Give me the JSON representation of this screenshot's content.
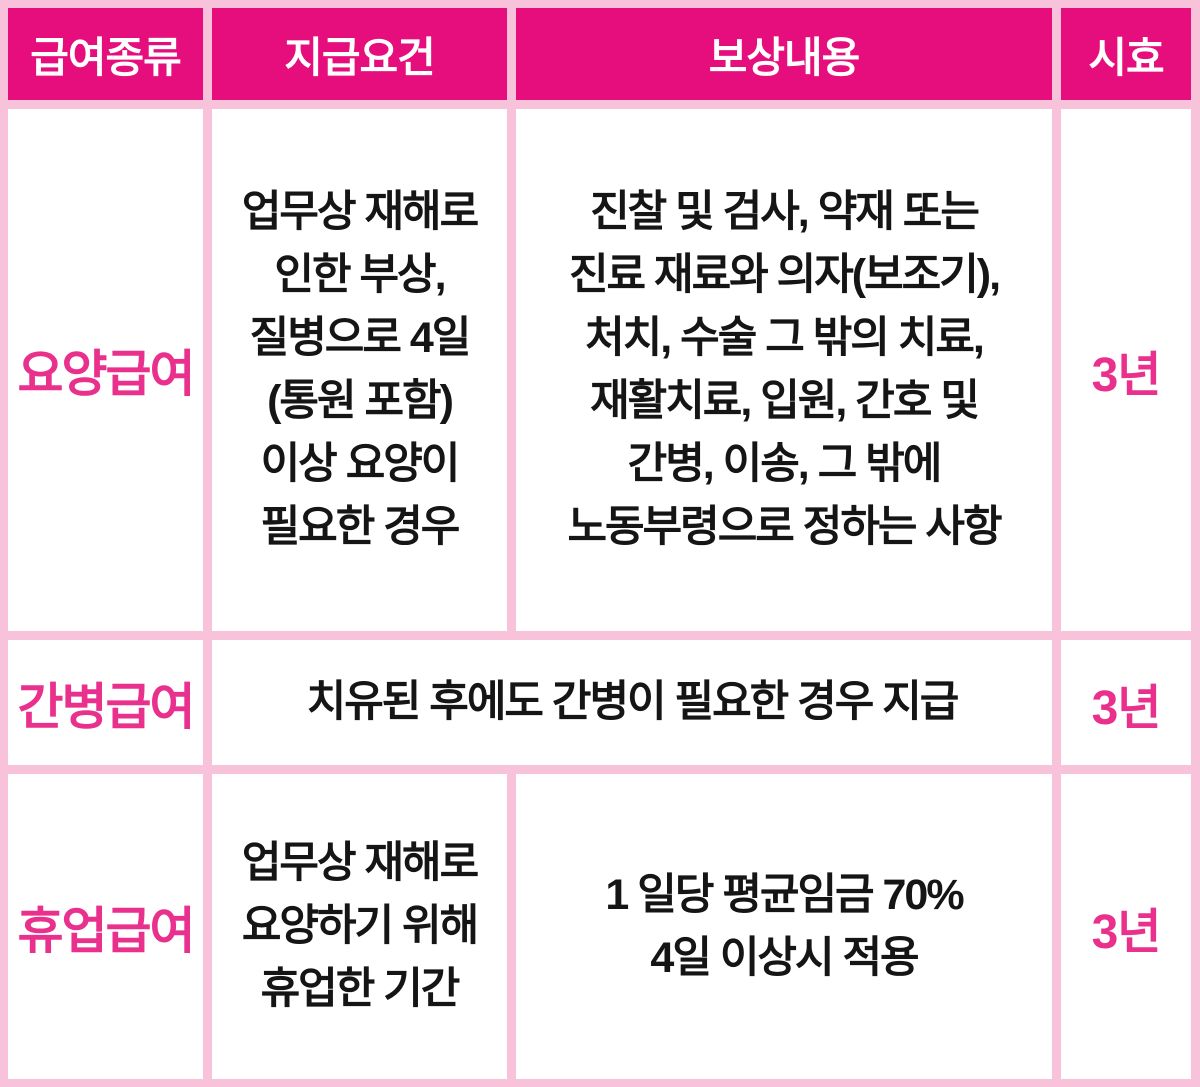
{
  "colors": {
    "header_bg": "#e60d7c",
    "accent_text": "#e9308c",
    "grid_pink": "#f7c2da",
    "body_text": "#151515"
  },
  "table": {
    "headers": {
      "benefit_type": "급여종류",
      "requirement": "지급요건",
      "compensation": "보상내용",
      "limitation": "시효"
    },
    "rows": [
      {
        "benefit_type": "요양급여",
        "requirement_lines": [
          "업무상 재해로",
          "인한 부상,",
          "질병으로 4일",
          "(통원 포함)",
          "이상 요양이",
          "필요한 경우"
        ],
        "compensation_lines": [
          "진찰 및 검사, 약재 또는",
          "진료 재료와 의자(보조기),",
          "처치, 수술 그 밖의 치료,",
          "재활치료, 입원, 간호 및",
          "간병, 이송, 그 밖에",
          "노동부령으로 정하는 사항"
        ],
        "limitation": "3년"
      },
      {
        "benefit_type": "간병급여",
        "merged_text": "치유된 후에도 간병이 필요한 경우 지급",
        "limitation": "3년"
      },
      {
        "benefit_type": "휴업급여",
        "requirement_lines": [
          "업무상 재해로",
          "요양하기 위해",
          "휴업한 기간"
        ],
        "compensation_lines": [
          "1 일당 평균임금 70%",
          "4일 이상시 적용"
        ],
        "limitation": "3년"
      }
    ]
  }
}
